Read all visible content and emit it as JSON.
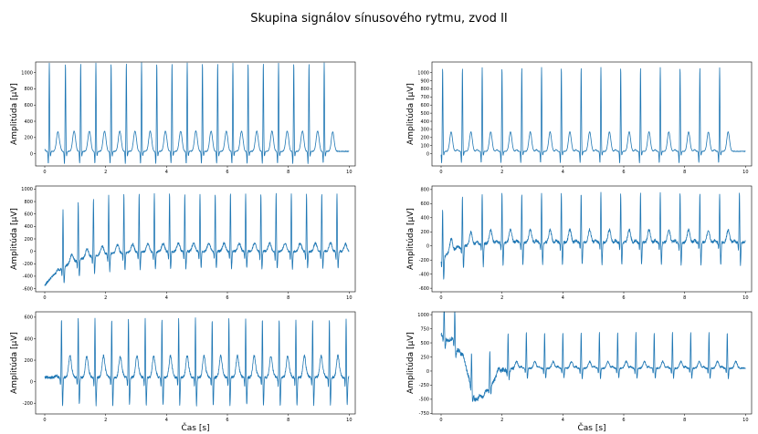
{
  "title": "Skupina signálov sínusového rytmu, zvod II",
  "colors": {
    "line": "#1f77b4",
    "axes": "#000000"
  },
  "chart_data": [
    {
      "type": "line",
      "xlabel": "",
      "ylabel": "Amplitúda [μV]",
      "xlim": [
        -0.3,
        10.2
      ],
      "ylim": [
        -150,
        1130
      ],
      "xticks": [
        0,
        2,
        4,
        6,
        8,
        10
      ],
      "yticks": [
        0,
        200,
        400,
        600,
        800,
        1000
      ],
      "beats": [
        0.15,
        0.68,
        1.18,
        1.68,
        2.18,
        2.68,
        3.18,
        3.68,
        4.18,
        4.68,
        5.18,
        5.68,
        6.18,
        6.68,
        7.18,
        7.68,
        8.18,
        8.68,
        9.18
      ],
      "r_amp": 1100,
      "p_amp": 30,
      "s_amp": -60,
      "t_amp": 240,
      "baseline": 30,
      "noise": 10,
      "drift": [
        0,
        0
      ]
    },
    {
      "type": "line",
      "xlabel": "",
      "ylabel": "Amplitúda [μV]",
      "xlim": [
        -0.3,
        10.2
      ],
      "ylim": [
        -150,
        1130
      ],
      "xticks": [
        0,
        2,
        4,
        6,
        8,
        10
      ],
      "yticks": [
        0,
        100,
        200,
        300,
        400,
        500,
        600,
        700,
        800,
        900,
        1000
      ],
      "beats": [
        0.05,
        0.7,
        1.35,
        2.0,
        2.65,
        3.3,
        3.95,
        4.6,
        5.25,
        5.9,
        6.55,
        7.2,
        7.85,
        8.5,
        9.15
      ],
      "r_amp": 1040,
      "p_amp": 20,
      "s_amp": -50,
      "t_amp": 240,
      "baseline": 30,
      "noise": 8,
      "drift": [
        0,
        0
      ]
    },
    {
      "type": "line",
      "xlabel": "",
      "ylabel": "Amplitúda [μV]",
      "xlim": [
        -0.3,
        10.2
      ],
      "ylim": [
        -650,
        1050
      ],
      "xticks": [
        0,
        2,
        4,
        6,
        8,
        10
      ],
      "yticks": [
        -600,
        -400,
        -200,
        0,
        200,
        400,
        600,
        800,
        1000
      ],
      "beats": [
        0.6,
        1.1,
        1.6,
        2.1,
        2.6,
        3.1,
        3.6,
        4.1,
        4.6,
        5.1,
        5.6,
        6.1,
        6.6,
        7.1,
        7.6,
        8.1,
        8.6,
        9.1,
        9.6
      ],
      "r_amp": 950,
      "p_amp": 30,
      "s_amp": -280,
      "t_amp": 120,
      "baseline": 0,
      "noise": 40,
      "drift": [
        -550,
        0.8
      ]
    },
    {
      "type": "line",
      "xlabel": "",
      "ylabel": "Amplitúda [μV]",
      "xlim": [
        -0.3,
        10.2
      ],
      "ylim": [
        -650,
        850
      ],
      "xticks": [
        0,
        2,
        4,
        6,
        8,
        10
      ],
      "yticks": [
        -600,
        -400,
        -200,
        0,
        200,
        400,
        600,
        800
      ],
      "beats": [
        0.05,
        0.7,
        1.35,
        2.0,
        2.65,
        3.3,
        3.95,
        4.6,
        5.25,
        5.9,
        6.55,
        7.2,
        7.85,
        8.5,
        9.15,
        9.8
      ],
      "r_amp": 720,
      "p_amp": 30,
      "s_amp": -320,
      "t_amp": 180,
      "baseline": 50,
      "noise": 40,
      "drift": [
        -250,
        0.5
      ]
    },
    {
      "type": "line",
      "xlabel": "Čas [s]",
      "ylabel": "Amplitúda [μV]",
      "xlim": [
        -0.3,
        10.2
      ],
      "ylim": [
        -300,
        650
      ],
      "xticks": [
        0,
        2,
        4,
        6,
        8,
        10
      ],
      "yticks": [
        -200,
        0,
        200,
        400,
        600
      ],
      "beats": [
        0.55,
        1.1,
        1.65,
        2.2,
        2.75,
        3.3,
        3.85,
        4.4,
        4.95,
        5.5,
        6.05,
        6.6,
        7.15,
        7.7,
        8.25,
        8.8,
        9.35,
        9.9
      ],
      "r_amp": 560,
      "p_amp": 20,
      "s_amp": -260,
      "t_amp": 200,
      "baseline": 40,
      "noise": 25,
      "drift": [
        0,
        0
      ]
    },
    {
      "type": "line",
      "xlabel": "Čas [s]",
      "ylabel": "Amplitúda [μV]",
      "xlim": [
        -0.3,
        10.2
      ],
      "ylim": [
        -760,
        1050
      ],
      "xticks": [
        0,
        2,
        4,
        6,
        8,
        10
      ],
      "yticks": [
        -750,
        -500,
        -250,
        0,
        250,
        500,
        750,
        1000
      ],
      "beats": [
        0.1,
        0.45,
        1.0,
        1.6,
        2.2,
        2.8,
        3.4,
        4.0,
        4.6,
        5.2,
        5.8,
        6.4,
        7.0,
        7.6,
        8.2,
        8.8,
        9.4
      ],
      "r_amp": 650,
      "p_amp": 30,
      "s_amp": -180,
      "t_amp": 120,
      "baseline": 50,
      "noise": 30,
      "drift": [
        0,
        0
      ],
      "artifact": [
        [
          0.0,
          600
        ],
        [
          0.3,
          450
        ],
        [
          0.6,
          300
        ],
        [
          0.9,
          -150
        ],
        [
          1.1,
          -550
        ],
        [
          1.3,
          -600
        ],
        [
          1.6,
          -300
        ],
        [
          2.0,
          -50
        ],
        [
          2.4,
          0
        ]
      ]
    }
  ]
}
